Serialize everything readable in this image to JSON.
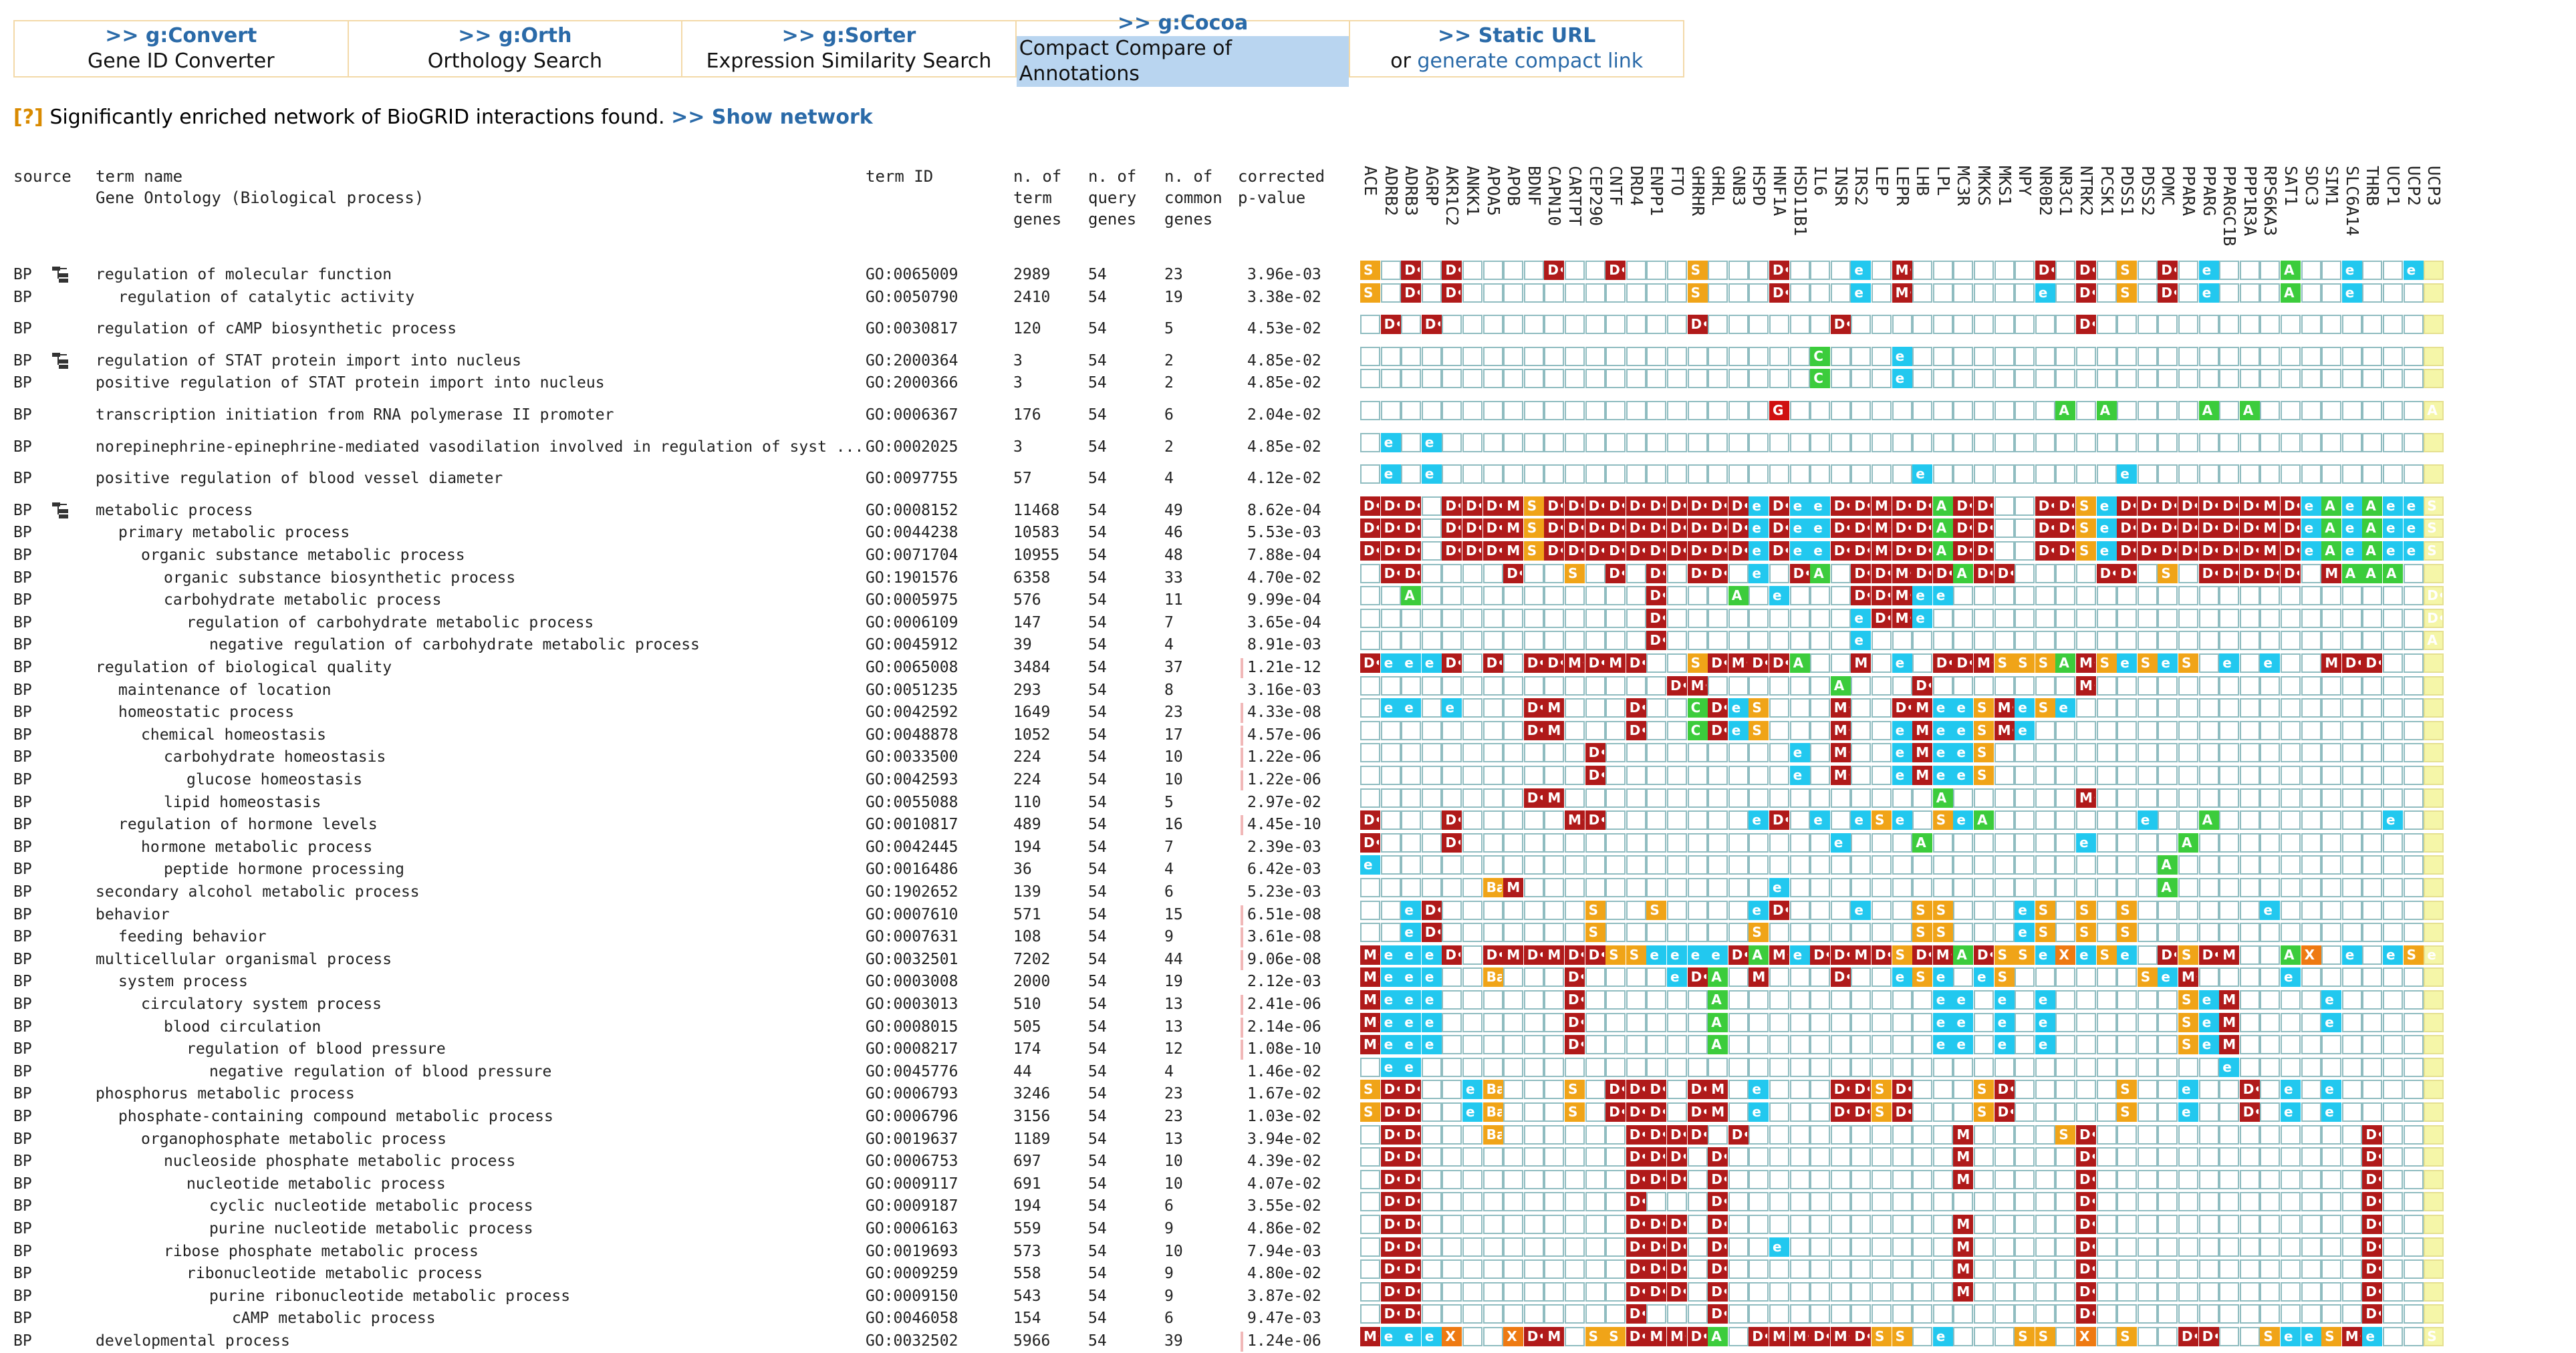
{
  "nav": [
    {
      "title": ">> g:Convert",
      "sub": "Gene ID Converter"
    },
    {
      "title": ">> g:Orth",
      "sub": "Orthology Search"
    },
    {
      "title": ">> g:Sorter",
      "sub": "Expression Similarity Search"
    },
    {
      "title": ">> g:Cocoa",
      "sub": "Compact Compare of Annotations",
      "selected": true
    },
    {
      "title": ">> Static URL",
      "sub_prefix": "or ",
      "sub_link": "generate compact link"
    }
  ],
  "notice": {
    "q": "[?]",
    "text": " Significantly enriched network of BioGRID interactions found. ",
    "link": ">> Show network"
  },
  "headers": {
    "source": "source",
    "term_name": "term name\nGene Ontology (Biological process)",
    "term_id": "term ID",
    "n_term": "n. of\nterm\ngenes",
    "n_query": "n. of\nquery\ngenes",
    "n_common": "n. of\ncommon\ngenes",
    "pvalue": "corrected\np-value"
  },
  "genes": [
    "ACE",
    "ADRB2",
    "ADRB3",
    "AGRP",
    "AKR1C2",
    "ANKK1",
    "APOA5",
    "APOB",
    "BDNF",
    "CAPN10",
    "CARTPT",
    "CEP290",
    "CNTF",
    "DRD4",
    "ENPP1",
    "FTO",
    "GHRHR",
    "GHRL",
    "GNB3",
    "HSPD",
    "HNF1A",
    "HSD11B1",
    "IL6",
    "INSR",
    "IRS2",
    "LEP",
    "LEPR",
    "LHB",
    "LPL",
    "MC3R",
    "MKKS",
    "MKS1",
    "NPY",
    "NR0B2",
    "NR3C1",
    "NTRK2",
    "PCSK1",
    "PDSS1",
    "PDSS2",
    "POMC",
    "PPARA",
    "PPARG",
    "PPARGC1B",
    "PPP1R3A",
    "RPS6KA3",
    "SAT1",
    "SDC3",
    "SIM1",
    "SLC6A14",
    "THRB",
    "UCP1",
    "UCP2",
    "UCP3"
  ],
  "rows": [
    {
      "source": "BP",
      "icon": true,
      "term": "regulation of molecular function",
      "indent": 0,
      "id": "GO:0065009",
      "n_term": "2989",
      "n_query": "54",
      "n_common": "23",
      "p": "3.96e-03",
      "cells": "S.D.D....D..D...S...D...e.M......D.D.S.D.e...A..e..e.D....S......D.S...D"
    },
    {
      "source": "BP",
      "icon": false,
      "term": "regulation of catalytic activity",
      "indent": 1,
      "id": "GO:0050790",
      "n_term": "2410",
      "n_query": "54",
      "n_common": "19",
      "p": "3.38e-02",
      "cells": "S.D.D...........S...D...e.M......e.D.S.D.e...A..e..........S......D.D"
    },
    {
      "source": "BP",
      "icon": false,
      "term": "regulation of cAMP biosynthetic process",
      "indent": 0,
      "id": "GO:0030817",
      "n_term": "120",
      "n_query": "54",
      "n_common": "5",
      "p": "4.53e-02",
      "gap": true,
      "cells": ".D.D............D......D...........D"
    },
    {
      "source": "BP",
      "icon": true,
      "term": "regulation of STAT protein import into nucleus",
      "indent": 0,
      "id": "GO:2000364",
      "n_term": "3",
      "n_query": "54",
      "n_common": "2",
      "p": "4.85e-02",
      "gap": true,
      "cells": "......................C...e"
    },
    {
      "source": "BP",
      "icon": false,
      "term": "positive regulation of STAT protein import into nucleus",
      "indent": 0,
      "id": "GO:2000366",
      "n_term": "3",
      "n_query": "54",
      "n_common": "2",
      "p": "4.85e-02",
      "cells": "......................C...e"
    },
    {
      "source": "BP",
      "icon": false,
      "term": "transcription initiation from RNA polymerase II promoter",
      "indent": 0,
      "id": "GO:0006367",
      "n_term": "176",
      "n_query": "54",
      "n_common": "6",
      "p": "2.04e-02",
      "gap": true,
      "cells": "....................G.............A.A....A.A........A"
    },
    {
      "source": "BP",
      "icon": false,
      "term": "norepinephrine-epinephrine-mediated vasodilation involved in regulation of syst ...",
      "indent": 0,
      "id": "GO:0002025",
      "n_term": "3",
      "n_query": "54",
      "n_common": "2",
      "p": "4.85e-02",
      "gap": true,
      "cells": ".e.e"
    },
    {
      "source": "BP",
      "icon": false,
      "term": "positive regulation of blood vessel diameter",
      "indent": 0,
      "id": "GO:0097755",
      "n_term": "57",
      "n_query": "54",
      "n_common": "4",
      "p": "4.12e-02",
      "gap": true,
      "cells": ".e.e.......................e.........e"
    },
    {
      "source": "BP",
      "icon": true,
      "term": "metabolic process",
      "indent": 0,
      "id": "GO:0008152",
      "n_term": "11468",
      "n_query": "54",
      "n_common": "49",
      "p": "8.62e-04",
      "gap": true,
      "cells": "DDD.DDDMSDDDDDDDDDDeDeeDDMDDADD..DDSeDDDDDDDMDeAeAeeSSBe"
    },
    {
      "source": "BP",
      "icon": false,
      "term": "primary metabolic process",
      "indent": 1,
      "id": "GO:0044238",
      "n_term": "10583",
      "n_query": "54",
      "n_common": "46",
      "p": "5.53e-03",
      "cells": "DDD.DDDMSDDDDDDDDDDeDeeDDMDDADD..DDSeDDDDDDDMDeAeAeeSS.e"
    },
    {
      "source": "BP",
      "icon": false,
      "term": "organic substance metabolic process",
      "indent": 2,
      "id": "GO:0071704",
      "n_term": "10955",
      "n_query": "54",
      "n_common": "48",
      "p": "7.88e-04",
      "cells": "DDD.DDDMSDDDDDDDDDDeDeeDDMDDADD..DDSeDDDDDDDMDeAeAeeSSBe"
    },
    {
      "source": "BP",
      "icon": false,
      "term": "organic substance biosynthetic process",
      "indent": 3,
      "id": "GO:1901576",
      "n_term": "6358",
      "n_query": "54",
      "n_common": "33",
      "p": "4.70e-02",
      "cells": ".DD....D..S.D.D.DD.e.DA.DDMDDADD....DD.S.DDDDD.MAAA"
    },
    {
      "source": "BP",
      "icon": false,
      "term": "carbohydrate metabolic process",
      "indent": 3,
      "id": "GO:0005975",
      "n_term": "576",
      "n_query": "54",
      "n_common": "11",
      "p": "9.99e-04",
      "cells": "..A...........D...A.e...DDMee.......................D..e"
    },
    {
      "source": "BP",
      "icon": false,
      "term": "regulation of carbohydrate metabolic process",
      "indent": 4,
      "id": "GO:0006109",
      "n_term": "147",
      "n_query": "54",
      "n_common": "7",
      "p": "3.65e-04",
      "cells": "..............D.........eDMe........................D"
    },
    {
      "source": "BP",
      "icon": false,
      "term": "negative regulation of carbohydrate metabolic process",
      "indent": 5,
      "id": "GO:0045912",
      "n_term": "39",
      "n_query": "54",
      "n_common": "4",
      "p": "8.91e-03",
      "cells": "..............D.........e...........................A"
    },
    {
      "source": "BP",
      "icon": false,
      "term": "regulation of biological quality",
      "indent": 0,
      "id": "GO:0065008",
      "n_term": "3484",
      "n_query": "54",
      "n_common": "37",
      "p": "1.21e-12",
      "bar": true,
      "cells": "DeeeD.D.DDMDMD..SDMDDA..M.e.DDMSSSAMSeSeS.e.e..MDD....e..e"
    },
    {
      "source": "BP",
      "icon": false,
      "term": "maintenance of location",
      "indent": 1,
      "id": "GO:0051235",
      "n_term": "293",
      "n_query": "54",
      "n_common": "8",
      "p": "3.16e-03",
      "cells": "...............DM......A...D.......M......................DD"
    },
    {
      "source": "BP",
      "icon": false,
      "term": "homeostatic process",
      "indent": 1,
      "id": "GO:0042592",
      "n_term": "1649",
      "n_query": "54",
      "n_common": "23",
      "p": "4.33e-08",
      "bar": true,
      "cells": ".ee.e...DM...D..CDeS...M..DMeeSMeSe.......................Me"
    },
    {
      "source": "BP",
      "icon": false,
      "term": "chemical homeostasis",
      "indent": 2,
      "id": "GO:0048878",
      "n_term": "1052",
      "n_query": "54",
      "n_common": "17",
      "p": "4.57e-06",
      "bar": true,
      "cells": "........DM...D..CDeS...M..eMeeSMe........................M"
    },
    {
      "source": "BP",
      "icon": false,
      "term": "carbohydrate homeostasis",
      "indent": 3,
      "id": "GO:0033500",
      "n_term": "224",
      "n_query": "54",
      "n_common": "10",
      "p": "1.22e-06",
      "bar": true,
      "cells": "...........D.........e.M..eMeeS........................M"
    },
    {
      "source": "BP",
      "icon": false,
      "term": "glucose homeostasis",
      "indent": 4,
      "id": "GO:0042593",
      "n_term": "224",
      "n_query": "54",
      "n_common": "10",
      "p": "1.22e-06",
      "bar": true,
      "cells": "...........D.........e.M..eMeeS........................M"
    },
    {
      "source": "BP",
      "icon": false,
      "term": "lipid homeostasis",
      "indent": 3,
      "id": "GO:0055088",
      "n_term": "110",
      "n_query": "54",
      "n_common": "5",
      "p": "2.97e-02",
      "cells": "........DM..................A......M.....................A"
    },
    {
      "source": "BP",
      "icon": false,
      "term": "regulation of hormone levels",
      "indent": 1,
      "id": "GO:0010817",
      "n_term": "489",
      "n_query": "54",
      "n_common": "16",
      "p": "4.45e-10",
      "bar": true,
      "cells": "D...D.....MD.......eD.e.eSe.SeA.......e..A........e"
    },
    {
      "source": "BP",
      "icon": false,
      "term": "hormone metabolic process",
      "indent": 2,
      "id": "GO:0042445",
      "n_term": "194",
      "n_query": "54",
      "n_common": "7",
      "p": "2.39e-03",
      "cells": "D...D..................e...A.......e....A"
    },
    {
      "source": "BP",
      "icon": false,
      "term": "peptide hormone processing",
      "indent": 3,
      "id": "GO:0016486",
      "n_term": "36",
      "n_query": "54",
      "n_common": "4",
      "p": "6.42e-03",
      "cells": "e......................................A"
    },
    {
      "source": "BP",
      "icon": false,
      "term": "secondary alcohol metabolic process",
      "indent": 0,
      "id": "GO:1902652",
      "n_term": "139",
      "n_query": "54",
      "n_common": "6",
      "p": "5.23e-03",
      "cells": "......BM............e..................A"
    },
    {
      "source": "BP",
      "icon": false,
      "term": "behavior",
      "indent": 0,
      "id": "GO:0007610",
      "n_term": "571",
      "n_query": "54",
      "n_common": "15",
      "p": "6.51e-08",
      "bar": true,
      "cells": "..eD.......S..S....eD...e..SS...eS.S.S......e"
    },
    {
      "source": "BP",
      "icon": false,
      "term": "feeding behavior",
      "indent": 1,
      "id": "GO:0007631",
      "n_term": "108",
      "n_query": "54",
      "n_common": "9",
      "p": "3.61e-08",
      "bar": true,
      "cells": "..eD.......S.......S.......SS...eS.S.S"
    },
    {
      "source": "BP",
      "icon": false,
      "term": "multicellular organismal process",
      "indent": 0,
      "id": "GO:0032501",
      "n_term": "7202",
      "n_query": "54",
      "n_common": "44",
      "p": "9.06e-08",
      "bar": true,
      "cells": "MeeeD.DMDMDDSSeeeeDAMeDDMDSDMADSSeXeSe.DSDM..AX.e.eSeAe"
    },
    {
      "source": "BP",
      "icon": false,
      "term": "system process",
      "indent": 1,
      "id": "GO:0003008",
      "n_term": "2000",
      "n_query": "54",
      "n_common": "19",
      "p": "2.12e-03",
      "cells": "Meee..B...D....eDA.M...D..eSe.eS......SeM....e"
    },
    {
      "source": "BP",
      "icon": false,
      "term": "circulatory system process",
      "indent": 2,
      "id": "GO:0003013",
      "n_term": "510",
      "n_query": "54",
      "n_common": "13",
      "p": "2.41e-06",
      "bar": true,
      "cells": "Meee......D......A..........ee.e.e......SeM....e"
    },
    {
      "source": "BP",
      "icon": false,
      "term": "blood circulation",
      "indent": 3,
      "id": "GO:0008015",
      "n_term": "505",
      "n_query": "54",
      "n_common": "13",
      "p": "2.14e-06",
      "bar": true,
      "cells": "Meee......D......A..........ee.e.e......SeM....e"
    },
    {
      "source": "BP",
      "icon": false,
      "term": "regulation of blood pressure",
      "indent": 4,
      "id": "GO:0008217",
      "n_term": "174",
      "n_query": "54",
      "n_common": "12",
      "p": "1.08e-10",
      "bar": true,
      "cells": "Meee......D......A..........ee.e.e......SeM"
    },
    {
      "source": "BP",
      "icon": false,
      "term": "negative regulation of blood pressure",
      "indent": 5,
      "id": "GO:0045776",
      "n_term": "44",
      "n_query": "54",
      "n_common": "4",
      "p": "1.46e-02",
      "cells": ".ee.......................................e"
    },
    {
      "source": "BP",
      "icon": false,
      "term": "phosphorus metabolic process",
      "indent": 0,
      "id": "GO:0006793",
      "n_term": "3246",
      "n_query": "54",
      "n_common": "23",
      "p": "1.67e-02",
      "cells": "SDD..eB...S.DDD.DM.e...DDSD...SD.....S..e..D.e.e"
    },
    {
      "source": "BP",
      "icon": false,
      "term": "phosphate-containing compound metabolic process",
      "indent": 1,
      "id": "GO:0006796",
      "n_term": "3156",
      "n_query": "54",
      "n_common": "23",
      "p": "1.03e-02",
      "cells": "SDD..eB...S.DDD.DM.e...DDSD...SD.....S..e..D.e.e"
    },
    {
      "source": "BP",
      "icon": false,
      "term": "organophosphate metabolic process",
      "indent": 2,
      "id": "GO:0019637",
      "n_term": "1189",
      "n_query": "54",
      "n_common": "13",
      "p": "3.94e-02",
      "cells": ".DD...B......DDDD.D..........M....SD.............D"
    },
    {
      "source": "BP",
      "icon": false,
      "term": "nucleoside phosphate metabolic process",
      "indent": 3,
      "id": "GO:0006753",
      "n_term": "697",
      "n_query": "54",
      "n_common": "10",
      "p": "4.39e-02",
      "cells": ".DD..........DDD.D...........M.....D.............D"
    },
    {
      "source": "BP",
      "icon": false,
      "term": "nucleotide metabolic process",
      "indent": 4,
      "id": "GO:0009117",
      "n_term": "691",
      "n_query": "54",
      "n_common": "10",
      "p": "4.07e-02",
      "cells": ".DD..........DDD.D...........M.....D.............D"
    },
    {
      "source": "BP",
      "icon": false,
      "term": "cyclic nucleotide metabolic process",
      "indent": 5,
      "id": "GO:0009187",
      "n_term": "194",
      "n_query": "54",
      "n_common": "6",
      "p": "3.55e-02",
      "cells": ".DD..........D...D.................D.............D"
    },
    {
      "source": "BP",
      "icon": false,
      "term": "purine nucleotide metabolic process",
      "indent": 5,
      "id": "GO:0006163",
      "n_term": "559",
      "n_query": "54",
      "n_common": "9",
      "p": "4.86e-02",
      "cells": ".DD..........DDD.D...........M.....D.............D"
    },
    {
      "source": "BP",
      "icon": false,
      "term": "ribose phosphate metabolic process",
      "indent": 3,
      "id": "GO:0019693",
      "n_term": "573",
      "n_query": "54",
      "n_common": "10",
      "p": "7.94e-03",
      "cells": ".DD..........DDD.D..e........M.....D.............D"
    },
    {
      "source": "BP",
      "icon": false,
      "term": "ribonucleotide metabolic process",
      "indent": 4,
      "id": "GO:0009259",
      "n_term": "558",
      "n_query": "54",
      "n_common": "9",
      "p": "4.80e-02",
      "cells": ".DD..........DDD.D...........M.....D.............D"
    },
    {
      "source": "BP",
      "icon": false,
      "term": "purine ribonucleotide metabolic process",
      "indent": 5,
      "id": "GO:0009150",
      "n_term": "543",
      "n_query": "54",
      "n_common": "9",
      "p": "3.87e-02",
      "cells": ".DD..........DDD.D...........M.....D.............D"
    },
    {
      "source": "BP",
      "icon": false,
      "term": "cAMP metabolic process",
      "indent": 6,
      "id": "GO:0046058",
      "n_term": "154",
      "n_query": "54",
      "n_common": "6",
      "p": "9.47e-03",
      "cells": ".DD..........D...D.................D.............D"
    },
    {
      "source": "BP",
      "icon": false,
      "term": "developmental process",
      "indent": 0,
      "id": "GO:0032502",
      "n_term": "5966",
      "n_query": "54",
      "n_common": "39",
      "p": "1.24e-06",
      "bar": true,
      "cells": "MeeeX..XDM.SSDMMDA.DMMDMDSS.e...SS.X.S..DD..SeeSMe..SeAe"
    }
  ]
}
